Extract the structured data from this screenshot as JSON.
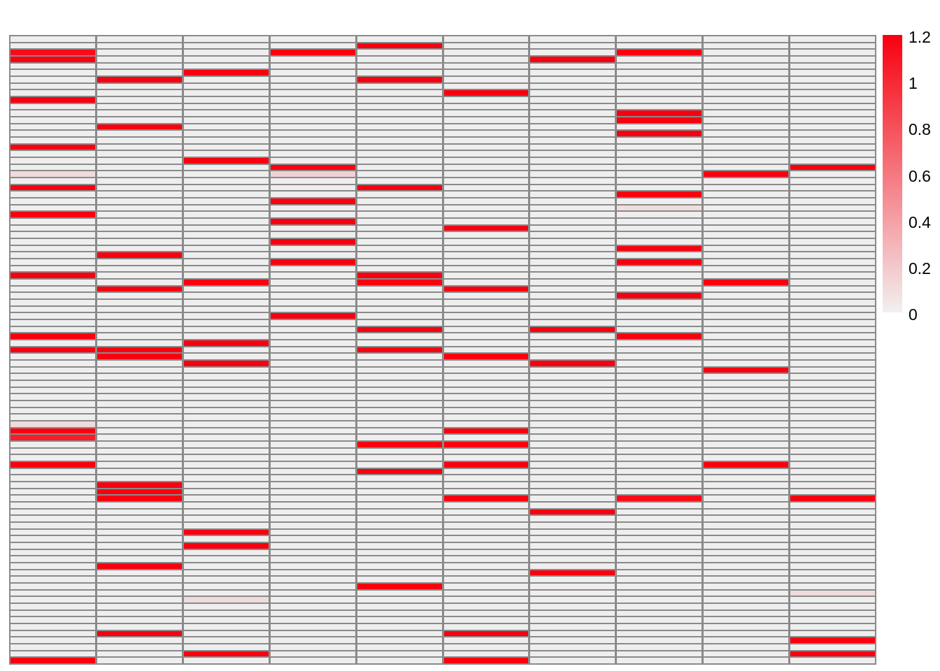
{
  "chart_data": {
    "type": "heatmap",
    "title": "",
    "xlabel": "",
    "ylabel": "",
    "rows": 93,
    "cols": 10,
    "grid": true,
    "legend_position": "right",
    "colorbar": {
      "min": 0,
      "max": 1.2,
      "tick_labels": [
        "1.2",
        "1",
        "0.8",
        "0.6",
        "0.4",
        "0.2",
        "0"
      ],
      "high_color": "#f8000f",
      "low_color": "#f2f0f0"
    },
    "colors": {
      "cell_background": "#efeeee",
      "gridline": "#8a8a8a",
      "max_red": "#f8000f"
    },
    "cells": [
      [
        1,
        5,
        1.0
      ],
      [
        2,
        1,
        0.95
      ],
      [
        2,
        4,
        1.0
      ],
      [
        2,
        8,
        1.0
      ],
      [
        3,
        1,
        1.0
      ],
      [
        3,
        7,
        1.0
      ],
      [
        5,
        3,
        1.0
      ],
      [
        6,
        2,
        1.0
      ],
      [
        6,
        5,
        1.0
      ],
      [
        8,
        6,
        1.0
      ],
      [
        9,
        1,
        1.0
      ],
      [
        11,
        8,
        1.0
      ],
      [
        12,
        8,
        1.0
      ],
      [
        13,
        2,
        1.0
      ],
      [
        14,
        8,
        1.0
      ],
      [
        16,
        1,
        1.0
      ],
      [
        18,
        3,
        1.0
      ],
      [
        19,
        4,
        1.0
      ],
      [
        19,
        10,
        1.0
      ],
      [
        20,
        1,
        0.08
      ],
      [
        20,
        4,
        0.12
      ],
      [
        20,
        9,
        1.0
      ],
      [
        22,
        1,
        1.0
      ],
      [
        22,
        5,
        1.0
      ],
      [
        23,
        8,
        1.0
      ],
      [
        24,
        4,
        1.0
      ],
      [
        25,
        8,
        0.07
      ],
      [
        26,
        1,
        1.0
      ],
      [
        27,
        4,
        1.0
      ],
      [
        28,
        6,
        1.0
      ],
      [
        30,
        4,
        1.0
      ],
      [
        31,
        8,
        1.0
      ],
      [
        32,
        2,
        1.0
      ],
      [
        33,
        4,
        1.0
      ],
      [
        33,
        8,
        1.0
      ],
      [
        35,
        1,
        1.0
      ],
      [
        35,
        5,
        1.0
      ],
      [
        36,
        3,
        1.0
      ],
      [
        36,
        5,
        1.0
      ],
      [
        36,
        9,
        1.0
      ],
      [
        37,
        2,
        1.0
      ],
      [
        37,
        6,
        1.0
      ],
      [
        38,
        8,
        1.0
      ],
      [
        41,
        4,
        1.0
      ],
      [
        43,
        5,
        1.0
      ],
      [
        43,
        7,
        1.0
      ],
      [
        44,
        1,
        1.0
      ],
      [
        44,
        8,
        1.0
      ],
      [
        45,
        3,
        1.0
      ],
      [
        46,
        1,
        1.0
      ],
      [
        46,
        2,
        1.0
      ],
      [
        46,
        5,
        1.0
      ],
      [
        47,
        2,
        1.0
      ],
      [
        47,
        6,
        1.0
      ],
      [
        48,
        3,
        1.0
      ],
      [
        48,
        7,
        1.0
      ],
      [
        49,
        9,
        1.0
      ],
      [
        57,
        1,
        0.08
      ],
      [
        58,
        1,
        1.0
      ],
      [
        58,
        6,
        1.0
      ],
      [
        59,
        1,
        0.88
      ],
      [
        60,
        5,
        1.0
      ],
      [
        60,
        6,
        1.0
      ],
      [
        63,
        1,
        1.0
      ],
      [
        63,
        6,
        1.0
      ],
      [
        63,
        9,
        1.0
      ],
      [
        64,
        5,
        1.0
      ],
      [
        66,
        2,
        1.0
      ],
      [
        67,
        2,
        1.0
      ],
      [
        68,
        2,
        1.0
      ],
      [
        68,
        6,
        1.0
      ],
      [
        68,
        8,
        0.95
      ],
      [
        68,
        10,
        1.0
      ],
      [
        70,
        7,
        1.0
      ],
      [
        73,
        3,
        1.0
      ],
      [
        75,
        3,
        1.0
      ],
      [
        78,
        2,
        1.0
      ],
      [
        79,
        7,
        1.0
      ],
      [
        81,
        5,
        1.0
      ],
      [
        82,
        10,
        0.08
      ],
      [
        83,
        3,
        0.08
      ],
      [
        88,
        2,
        1.0
      ],
      [
        88,
        6,
        1.0
      ],
      [
        89,
        10,
        1.0
      ],
      [
        91,
        3,
        1.0
      ],
      [
        91,
        10,
        1.0
      ],
      [
        92,
        1,
        1.0
      ],
      [
        92,
        6,
        1.0
      ]
    ]
  }
}
